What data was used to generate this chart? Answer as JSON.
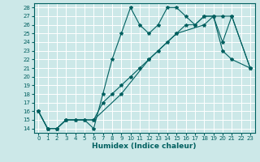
{
  "xlabel": "Humidex (Indice chaleur)",
  "background_color": "#cce8e8",
  "grid_color": "#ffffff",
  "line_color": "#006060",
  "xlim": [
    -0.5,
    23.5
  ],
  "ylim": [
    13.5,
    28.5
  ],
  "xticks": [
    0,
    1,
    2,
    3,
    4,
    5,
    6,
    7,
    8,
    9,
    10,
    11,
    12,
    13,
    14,
    15,
    16,
    17,
    18,
    19,
    20,
    21,
    22,
    23
  ],
  "yticks": [
    14,
    15,
    16,
    17,
    18,
    19,
    20,
    21,
    22,
    23,
    24,
    25,
    26,
    27,
    28
  ],
  "line1_x": [
    0,
    1,
    2,
    3,
    4,
    5,
    6,
    7,
    8,
    9,
    10,
    11,
    12,
    13,
    14,
    15,
    16,
    17,
    18,
    19,
    20,
    21,
    23
  ],
  "line1_y": [
    16,
    14,
    14,
    15,
    15,
    15,
    14,
    18,
    22,
    25,
    28,
    26,
    25,
    26,
    28,
    28,
    27,
    26,
    27,
    27,
    23,
    22,
    21
  ],
  "line2_x": [
    0,
    1,
    2,
    3,
    4,
    5,
    6,
    7,
    8,
    9,
    10,
    11,
    12,
    13,
    14,
    15,
    16,
    17,
    18,
    19,
    20,
    21,
    23
  ],
  "line2_y": [
    16,
    14,
    14,
    15,
    15,
    15,
    15,
    17,
    18,
    19,
    20,
    21,
    22,
    23,
    24,
    25,
    26,
    26,
    27,
    27,
    24,
    27,
    21
  ],
  "line3_x": [
    0,
    1,
    2,
    3,
    6,
    9,
    12,
    15,
    18,
    19,
    20,
    21,
    23
  ],
  "line3_y": [
    16,
    14,
    14,
    15,
    15,
    18,
    22,
    25,
    26,
    27,
    27,
    27,
    21
  ]
}
